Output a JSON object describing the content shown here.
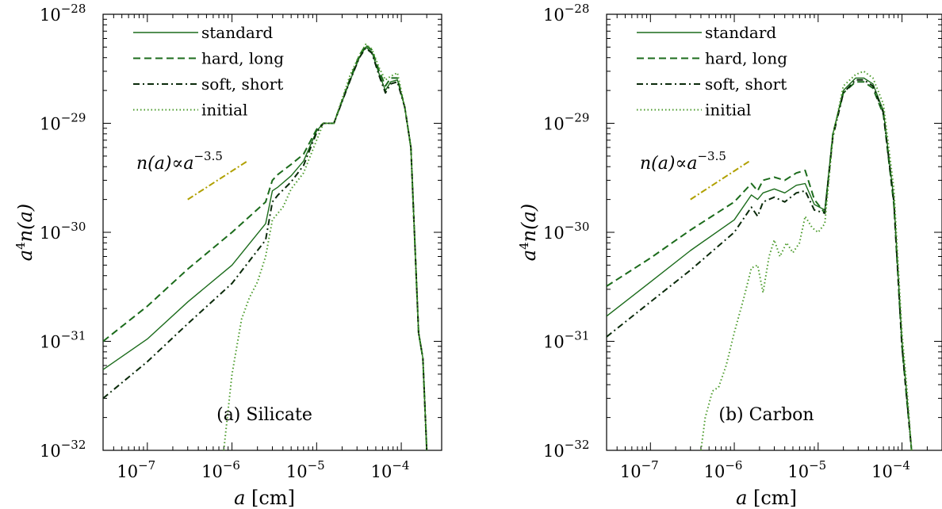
{
  "figure": {
    "chart_data": [
      {
        "type": "line",
        "panel_label": "(a) Silicate",
        "xlabel": "a [cm]",
        "ylabel": "a^4 n(a)",
        "xscale": "log",
        "yscale": "log",
        "xlim": [
          3e-08,
          0.0003
        ],
        "ylim": [
          1e-32,
          1e-28
        ],
        "x_ticks": [
          {
            "value": 1e-07,
            "base": "10",
            "exp": "−7"
          },
          {
            "value": 1e-06,
            "base": "10",
            "exp": "−6"
          },
          {
            "value": 1e-05,
            "base": "10",
            "exp": "−5"
          },
          {
            "value": 0.0001,
            "base": "10",
            "exp": "−4"
          }
        ],
        "y_ticks": [
          {
            "value": 1e-32,
            "base": "10",
            "exp": "−32"
          },
          {
            "value": 1e-31,
            "base": "10",
            "exp": "−31"
          },
          {
            "value": 1e-30,
            "base": "10",
            "exp": "−30"
          },
          {
            "value": 1e-29,
            "base": "10",
            "exp": "−29"
          },
          {
            "value": 1e-28,
            "base": "10",
            "exp": "−28"
          }
        ],
        "legend": {
          "placement": "top-left"
        },
        "annotation": {
          "text_main": "n(a)∝a",
          "text_exp": "−3.5",
          "slope": -3.5,
          "line": {
            "x": [
              3e-07,
              1.5e-06
            ],
            "y": [
              2e-30,
              4.47e-30
            ]
          },
          "color": "#b0a000"
        },
        "series": [
          {
            "name": "standard",
            "style": "solid",
            "color": "#1b6b1b",
            "x": [
              3e-08,
              1e-07,
              3e-07,
              1e-06,
              2.5e-06,
              3e-06,
              3.5e-06,
              5e-06,
              7e-06,
              1e-05,
              1.2e-05,
              1.6e-05,
              2.5e-05,
              3.2e-05,
              3.8e-05,
              4.5e-05,
              5.5e-05,
              6.5e-05,
              7.5e-05,
              9e-05,
              0.00011,
              0.00013,
              0.00016,
              0.00018,
              0.0002
            ],
            "y": [
              5.5e-32,
              1.05e-31,
              2.3e-31,
              5e-31,
              1.2e-30,
              2.4e-30,
              2.6e-30,
              3.3e-30,
              4.5e-30,
              8.5e-30,
              1e-29,
              1e-29,
              2.5e-29,
              4e-29,
              5e-29,
              4.5e-29,
              2.8e-29,
              2e-29,
              2.4e-29,
              2.5e-29,
              1.4e-29,
              6e-30,
              1.2e-31,
              7e-32,
              1e-32
            ]
          },
          {
            "name": "hard, long",
            "style": "dashed",
            "color": "#1b6b1b",
            "x": [
              3e-08,
              1e-07,
              3e-07,
              1e-06,
              2.5e-06,
              3e-06,
              3.5e-06,
              5e-06,
              7e-06,
              1e-05,
              1.2e-05,
              1.6e-05,
              2.5e-05,
              3.2e-05,
              3.8e-05,
              4.5e-05,
              5.5e-05,
              6.5e-05,
              7.5e-05,
              9e-05,
              0.00011,
              0.00013,
              0.00016,
              0.00018,
              0.0002
            ],
            "y": [
              1e-31,
              2.1e-31,
              4.6e-31,
              1e-30,
              1.9e-30,
              3e-30,
              3.4e-30,
              4.2e-30,
              5.2e-30,
              8.8e-30,
              1e-29,
              1e-29,
              2.6e-29,
              4.2e-29,
              5.2e-29,
              4.7e-29,
              3e-29,
              2.2e-29,
              2.6e-29,
              2.6e-29,
              1.4e-29,
              6e-30,
              1.2e-31,
              7e-32,
              1e-32
            ]
          },
          {
            "name": "soft, short",
            "style": "dashdot",
            "color": "#0a2a0a",
            "x": [
              3e-08,
              1e-07,
              3e-07,
              1e-06,
              2.5e-06,
              3e-06,
              3.5e-06,
              5e-06,
              7e-06,
              1e-05,
              1.2e-05,
              1.6e-05,
              2.5e-05,
              3.2e-05,
              3.8e-05,
              4.5e-05,
              5.5e-05,
              6.5e-05,
              7.5e-05,
              9e-05,
              0.00011,
              0.00013,
              0.00016,
              0.00018,
              0.0002
            ],
            "y": [
              3e-32,
              6.5e-32,
              1.45e-31,
              3.4e-31,
              8.5e-31,
              1.9e-30,
              2.2e-30,
              2.9e-30,
              4.1e-30,
              8.2e-30,
              1e-29,
              1e-29,
              2.5e-29,
              4e-29,
              4.9e-29,
              4.4e-29,
              2.7e-29,
              1.9e-29,
              2.3e-29,
              2.4e-29,
              1.4e-29,
              6e-30,
              1.2e-31,
              7e-32,
              1e-32
            ]
          },
          {
            "name": "initial",
            "style": "dotted",
            "color": "#4a9a2a",
            "x": [
              8e-07,
              1e-06,
              1.3e-06,
              1.6e-06,
              2e-06,
              2.5e-06,
              3e-06,
              4e-06,
              5e-06,
              7e-06,
              1e-05,
              1.2e-05,
              1.6e-05,
              2.5e-05,
              3.2e-05,
              3.8e-05,
              4.5e-05,
              5.5e-05,
              6.5e-05,
              7.5e-05,
              9e-05,
              0.00011,
              0.00013,
              0.00016,
              0.00018,
              0.0002
            ],
            "y": [
              1e-32,
              5e-32,
              1.6e-31,
              2.5e-31,
              3.5e-31,
              6e-31,
              1.3e-30,
              1.7e-30,
              2.5e-30,
              3.5e-30,
              7e-30,
              1e-29,
              1e-29,
              2.8e-29,
              4.2e-29,
              5.3e-29,
              4.8e-29,
              3.2e-29,
              2.5e-29,
              2.7e-29,
              2.9e-29,
              1.4e-29,
              6e-30,
              1.2e-31,
              7e-32,
              1e-32
            ]
          }
        ]
      },
      {
        "type": "line",
        "panel_label": "(b) Carbon",
        "xlabel": "a [cm]",
        "ylabel": "a^4 n(a)",
        "xscale": "log",
        "yscale": "log",
        "xlim": [
          3e-08,
          0.0003
        ],
        "ylim": [
          1e-32,
          1e-28
        ],
        "x_ticks": [
          {
            "value": 1e-07,
            "base": "10",
            "exp": "−7"
          },
          {
            "value": 1e-06,
            "base": "10",
            "exp": "−6"
          },
          {
            "value": 1e-05,
            "base": "10",
            "exp": "−5"
          },
          {
            "value": 0.0001,
            "base": "10",
            "exp": "−4"
          }
        ],
        "y_ticks": [
          {
            "value": 1e-32,
            "base": "10",
            "exp": "−32"
          },
          {
            "value": 1e-31,
            "base": "10",
            "exp": "−31"
          },
          {
            "value": 1e-30,
            "base": "10",
            "exp": "−30"
          },
          {
            "value": 1e-29,
            "base": "10",
            "exp": "−29"
          },
          {
            "value": 1e-28,
            "base": "10",
            "exp": "−28"
          }
        ],
        "legend": {
          "placement": "top-left"
        },
        "annotation": {
          "text_main": "n(a)∝a",
          "text_exp": "−3.5",
          "slope": -3.5,
          "line": {
            "x": [
              3e-07,
              1.5e-06
            ],
            "y": [
              2e-30,
              4.47e-30
            ]
          },
          "color": "#b0a000"
        },
        "series": [
          {
            "name": "standard",
            "style": "solid",
            "color": "#1b6b1b",
            "x": [
              3e-08,
              1e-07,
              3e-07,
              1e-06,
              1.6e-06,
              1.9e-06,
              2.2e-06,
              3e-06,
              4e-06,
              5.5e-06,
              7e-06,
              9e-06,
              1.2e-05,
              1.5e-05,
              2e-05,
              2.8e-05,
              3.5e-05,
              4.5e-05,
              6e-05,
              8e-05,
              0.0001,
              0.000115,
              0.00013
            ],
            "y": [
              1.7e-31,
              3.5e-31,
              6.8e-31,
              1.3e-30,
              2.2e-30,
              2e-30,
              2.3e-30,
              2.5e-30,
              2.3e-30,
              2.7e-30,
              2.8e-30,
              1.8e-30,
              1.6e-30,
              8e-30,
              2e-29,
              2.6e-29,
              2.6e-29,
              2.3e-29,
              1.3e-29,
              2e-30,
              1e-31,
              3e-32,
              1e-32
            ]
          },
          {
            "name": "hard, long",
            "style": "dashed",
            "color": "#1b6b1b",
            "x": [
              3e-08,
              1e-07,
              3e-07,
              1e-06,
              1.6e-06,
              1.9e-06,
              2.2e-06,
              3e-06,
              4e-06,
              5.5e-06,
              7e-06,
              9e-06,
              1.2e-05,
              1.5e-05,
              2e-05,
              2.8e-05,
              3.5e-05,
              4.5e-05,
              6e-05,
              8e-05,
              0.0001,
              0.000115,
              0.00013
            ],
            "y": [
              3.2e-31,
              5.8e-31,
              1.05e-30,
              1.9e-30,
              2.8e-30,
              2.4e-30,
              3e-30,
              3.2e-30,
              3e-30,
              3.5e-30,
              3.7e-30,
              2e-30,
              1.5e-30,
              8e-30,
              1.9e-29,
              2.4e-29,
              2.4e-29,
              2.1e-29,
              1.2e-29,
              1.8e-30,
              9e-32,
              2.7e-32,
              1e-32
            ]
          },
          {
            "name": "soft, short",
            "style": "dashdot",
            "color": "#0a2a0a",
            "x": [
              3e-08,
              1e-07,
              3e-07,
              1e-06,
              1.6e-06,
              1.9e-06,
              2.2e-06,
              3e-06,
              4e-06,
              5.5e-06,
              7e-06,
              9e-06,
              1.2e-05,
              1.5e-05,
              2e-05,
              2.8e-05,
              3.5e-05,
              4.5e-05,
              6e-05,
              8e-05,
              0.0001,
              0.000115,
              0.00013
            ],
            "y": [
              1.1e-31,
              2.3e-31,
              4.5e-31,
              1e-30,
              1.7e-30,
              1.4e-30,
              1.9e-30,
              2.1e-30,
              1.9e-30,
              2.3e-30,
              2.4e-30,
              1.6e-30,
              1.5e-30,
              7.5e-30,
              1.9e-29,
              2.5e-29,
              2.5e-29,
              2.2e-29,
              1.25e-29,
              1.9e-30,
              9e-32,
              2.8e-32,
              1e-32
            ]
          },
          {
            "name": "initial",
            "style": "dotted",
            "color": "#4a9a2a",
            "x": [
              4e-07,
              4.5e-07,
              5.5e-07,
              6.5e-07,
              8e-07,
              1e-06,
              1.3e-06,
              1.6e-06,
              1.9e-06,
              2.2e-06,
              2.6e-06,
              3e-06,
              3.5e-06,
              4.2e-06,
              5e-06,
              6e-06,
              7e-06,
              8.5e-06,
              1e-05,
              1.2e-05,
              1.5e-05,
              2e-05,
              2.8e-05,
              3.5e-05,
              4.5e-05,
              6e-05,
              8e-05,
              0.0001,
              0.000115,
              0.00013
            ],
            "y": [
              1e-32,
              2e-32,
              3.5e-32,
              3.8e-32,
              6e-32,
              1.2e-31,
              2.5e-31,
              4.7e-31,
              5e-31,
              2.8e-31,
              6e-31,
              8.5e-31,
              6e-31,
              8e-31,
              6.5e-31,
              8e-31,
              1.4e-30,
              1.1e-30,
              1e-30,
              1.2e-30,
              7.5e-30,
              2.2e-29,
              2.8e-29,
              3e-29,
              2.6e-29,
              1.5e-29,
              2.5e-30,
              1.2e-31,
              3.5e-32,
              1e-32
            ]
          }
        ]
      }
    ]
  }
}
